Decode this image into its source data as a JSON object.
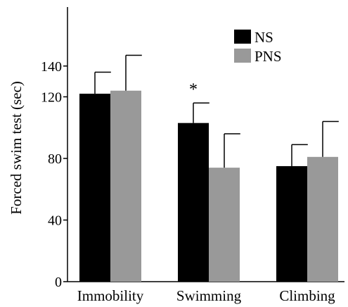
{
  "chart_data": {
    "type": "bar",
    "title": "",
    "xlabel": "",
    "ylabel": "Forced swim test (sec)",
    "ylim": [
      0,
      160
    ],
    "yticks": [
      0,
      40,
      80,
      120,
      140
    ],
    "categories": [
      "Immobility",
      "Swimming",
      "Climbing"
    ],
    "series": [
      {
        "name": "NS",
        "color": "#000000",
        "values": [
          122,
          103,
          75
        ],
        "errors": [
          14,
          13,
          14
        ]
      },
      {
        "name": "PNS",
        "color": "#999999",
        "values": [
          124,
          74,
          81
        ],
        "errors": [
          23,
          22,
          23
        ]
      }
    ],
    "annotations": [
      {
        "text": "*",
        "category": "Swimming",
        "series": "NS"
      }
    ],
    "legend_position": "top-right",
    "grid": false
  }
}
